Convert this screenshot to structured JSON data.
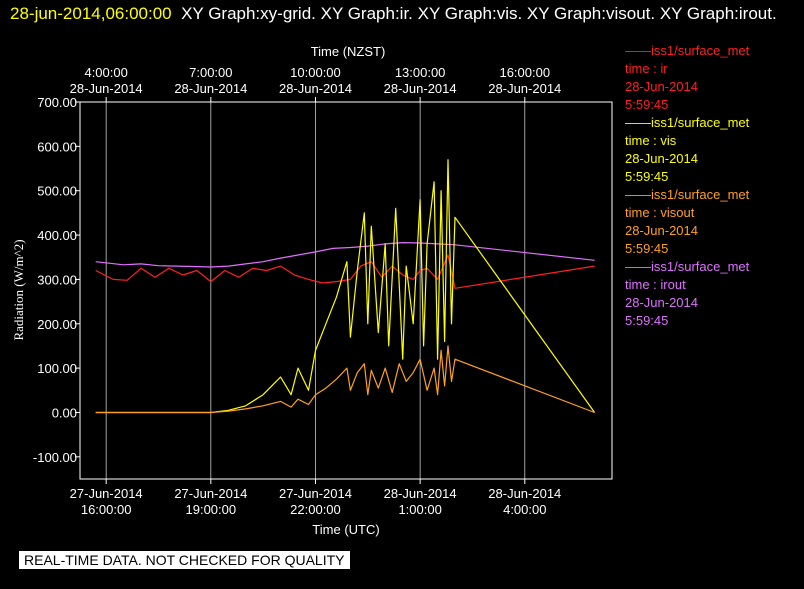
{
  "header": {
    "timestamp": "28-jun-2014,06:00:00",
    "title": "XY Graph:xy-grid.  XY Graph:ir.  XY Graph:vis.  XY Graph:visout.  XY Graph:irout."
  },
  "legend": [
    {
      "source": "iss1/surface_met",
      "series": "time : ir",
      "date": "28-Jun-2014",
      "time": "5:59:45",
      "color": "#ff2020"
    },
    {
      "source": "iss1/surface_met",
      "series": "time : vis",
      "date": "28-Jun-2014",
      "time": "5:59:45",
      "color": "#ffff00"
    },
    {
      "source": "iss1/surface_met",
      "series": "time : visout",
      "date": "28-Jun-2014",
      "time": "5:59:45",
      "color": "#ffa020"
    },
    {
      "source": "iss1/surface_met",
      "series": "time : irout",
      "date": "28-Jun-2014",
      "time": "5:59:45",
      "color": "#e070ff"
    }
  ],
  "footer": "REAL-TIME DATA. NOT CHECKED FOR QUALITY",
  "chart_data": {
    "type": "line",
    "xlabel": "Time (UTC)",
    "top_xlabel": "Time (NZST)",
    "ylabel": "Radiation (W/m^2)",
    "x_unit": "hours since 27-Jun-2014 16:00 UTC",
    "xlim": [
      -0.75,
      14.5
    ],
    "ylim": [
      -150,
      700
    ],
    "grid": true,
    "x_ticks": [
      {
        "x": 0,
        "bottom": [
          "27-Jun-2014",
          "16:00:00"
        ],
        "top": [
          "4:00:00",
          "28-Jun-2014"
        ]
      },
      {
        "x": 3,
        "bottom": [
          "27-Jun-2014",
          "19:00:00"
        ],
        "top": [
          "7:00:00",
          "28-Jun-2014"
        ]
      },
      {
        "x": 6,
        "bottom": [
          "27-Jun-2014",
          "22:00:00"
        ],
        "top": [
          "10:00:00",
          "28-Jun-2014"
        ]
      },
      {
        "x": 9,
        "bottom": [
          "28-Jun-2014",
          "1:00:00"
        ],
        "top": [
          "13:00:00",
          "28-Jun-2014"
        ]
      },
      {
        "x": 12,
        "bottom": [
          "28-Jun-2014",
          "4:00:00"
        ],
        "top": [
          "16:00:00",
          "28-Jun-2014"
        ]
      }
    ],
    "y_ticks": [
      {
        "v": 700,
        "label": "700.00"
      },
      {
        "v": 600,
        "label": "600.00"
      },
      {
        "v": 500,
        "label": "500.00"
      },
      {
        "v": 400,
        "label": "400.00"
      },
      {
        "v": 300,
        "label": "300.00"
      },
      {
        "v": 200,
        "label": "200.00"
      },
      {
        "v": 100,
        "label": "100.00"
      },
      {
        "v": 0,
        "label": "0.00"
      },
      {
        "v": -100,
        "label": "-100.00"
      }
    ],
    "series": [
      {
        "name": "irout",
        "color": "#e070ff",
        "x": [
          -0.3,
          0.5,
          1.0,
          1.5,
          2.0,
          2.5,
          3.0,
          3.5,
          4.0,
          4.5,
          5.0,
          5.5,
          6.0,
          6.5,
          7.0,
          7.5,
          8.0,
          8.5,
          9.0,
          9.5,
          10.0,
          14.0
        ],
        "y": [
          340,
          333,
          335,
          331,
          330,
          329,
          328,
          330,
          335,
          340,
          348,
          355,
          362,
          370,
          372,
          375,
          380,
          383,
          382,
          380,
          378,
          343
        ]
      },
      {
        "name": "ir",
        "color": "#ff2020",
        "x": [
          -0.3,
          0.2,
          0.6,
          1.0,
          1.4,
          1.8,
          2.2,
          2.6,
          3.0,
          3.4,
          3.8,
          4.2,
          4.6,
          5.0,
          5.4,
          5.8,
          6.2,
          6.6,
          7.0,
          7.3,
          7.6,
          7.9,
          8.2,
          8.5,
          8.8,
          9.0,
          9.2,
          9.5,
          9.8,
          10.0,
          14.0
        ],
        "y": [
          320,
          300,
          298,
          325,
          305,
          325,
          310,
          320,
          295,
          320,
          305,
          325,
          320,
          330,
          310,
          300,
          292,
          295,
          300,
          330,
          340,
          305,
          330,
          310,
          300,
          320,
          325,
          300,
          355,
          280,
          330
        ]
      },
      {
        "name": "vis",
        "color": "#ffff00",
        "x": [
          -0.3,
          1.0,
          2.0,
          3.0,
          3.5,
          4.0,
          4.5,
          5.0,
          5.3,
          5.5,
          5.8,
          6.0,
          6.3,
          6.6,
          6.9,
          7.0,
          7.2,
          7.4,
          7.5,
          7.6,
          7.8,
          8.0,
          8.1,
          8.3,
          8.5,
          8.6,
          8.8,
          9.0,
          9.1,
          9.2,
          9.4,
          9.5,
          9.6,
          9.7,
          9.8,
          9.9,
          10.0,
          14.0
        ],
        "y": [
          0,
          0,
          0,
          0,
          5,
          15,
          40,
          80,
          40,
          100,
          50,
          140,
          200,
          260,
          340,
          170,
          320,
          450,
          200,
          420,
          180,
          380,
          150,
          460,
          120,
          330,
          200,
          480,
          150,
          380,
          520,
          120,
          500,
          160,
          570,
          200,
          440,
          0
        ]
      },
      {
        "name": "visout",
        "color": "#ffa020",
        "x": [
          -0.3,
          1.0,
          2.0,
          3.0,
          3.5,
          4.0,
          4.5,
          5.0,
          5.3,
          5.5,
          5.8,
          6.0,
          6.3,
          6.6,
          6.9,
          7.0,
          7.2,
          7.4,
          7.5,
          7.6,
          7.8,
          8.0,
          8.2,
          8.4,
          8.6,
          8.8,
          9.0,
          9.2,
          9.4,
          9.5,
          9.6,
          9.7,
          9.8,
          9.9,
          10.0,
          14.0
        ],
        "y": [
          0,
          0,
          0,
          0,
          3,
          8,
          15,
          25,
          12,
          30,
          18,
          40,
          55,
          75,
          100,
          50,
          90,
          110,
          40,
          95,
          55,
          100,
          45,
          110,
          70,
          90,
          120,
          50,
          100,
          40,
          140,
          60,
          150,
          70,
          120,
          0
        ]
      }
    ]
  }
}
